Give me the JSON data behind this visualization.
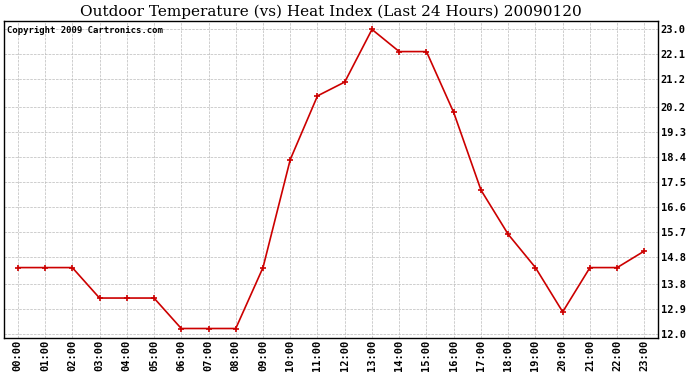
{
  "title": "Outdoor Temperature (vs) Heat Index (Last 24 Hours) 20090120",
  "copyright": "Copyright 2009 Cartronics.com",
  "hours": [
    "00:00",
    "01:00",
    "02:00",
    "03:00",
    "04:00",
    "05:00",
    "06:00",
    "07:00",
    "08:00",
    "09:00",
    "10:00",
    "11:00",
    "12:00",
    "13:00",
    "14:00",
    "15:00",
    "16:00",
    "17:00",
    "18:00",
    "19:00",
    "20:00",
    "21:00",
    "22:00",
    "23:00"
  ],
  "values": [
    14.4,
    14.4,
    14.4,
    13.3,
    13.3,
    13.3,
    12.2,
    12.2,
    12.2,
    14.4,
    18.3,
    20.6,
    21.1,
    23.0,
    22.2,
    22.2,
    20.0,
    17.2,
    15.6,
    14.4,
    12.8,
    14.4,
    14.4,
    15.0
  ],
  "y_ticks": [
    12.0,
    12.9,
    13.8,
    14.8,
    15.7,
    16.6,
    17.5,
    18.4,
    19.3,
    20.2,
    21.2,
    22.1,
    23.0
  ],
  "ylim": [
    11.85,
    23.3
  ],
  "line_color": "#cc0000",
  "marker_color": "#cc0000",
  "bg_color": "#ffffff",
  "plot_bg_color": "#ffffff",
  "grid_color": "#bbbbbb",
  "title_fontsize": 11,
  "copyright_fontsize": 6.5,
  "tick_fontsize": 7.5,
  "ytick_fontsize": 7.5
}
